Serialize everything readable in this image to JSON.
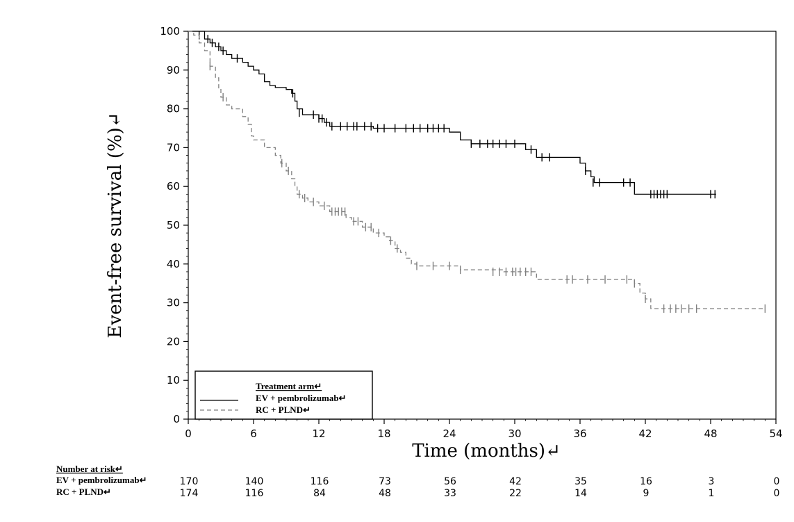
{
  "chart_data": {
    "type": "line",
    "subtype": "kaplan-meier",
    "xlabel": "Time (months)↵",
    "ylabel": "Event-free survival (%)↵",
    "xlim": [
      0,
      54
    ],
    "ylim": [
      0,
      100
    ],
    "xticks": [
      0,
      6,
      12,
      18,
      24,
      30,
      36,
      42,
      48,
      54
    ],
    "yticks": [
      0,
      10,
      20,
      30,
      40,
      50,
      60,
      70,
      80,
      90,
      100
    ],
    "grid": false,
    "legend": {
      "title": "Treatment arm↵",
      "placement": "bottom-left",
      "entries": [
        "EV + pembrolizumab↵",
        "RC + PLND↵"
      ]
    },
    "series": [
      {
        "name": "EV + pembrolizumab↵",
        "color": "#000000",
        "dash": "solid",
        "steps": [
          [
            0,
            100
          ],
          [
            1.5,
            98
          ],
          [
            2,
            97
          ],
          [
            2.5,
            96
          ],
          [
            3,
            95
          ],
          [
            3.5,
            94
          ],
          [
            4,
            93
          ],
          [
            5,
            92
          ],
          [
            5.5,
            91
          ],
          [
            6,
            90
          ],
          [
            6.5,
            89
          ],
          [
            7,
            87
          ],
          [
            7.5,
            86
          ],
          [
            8,
            85.5
          ],
          [
            9,
            85
          ],
          [
            9.5,
            84
          ],
          [
            9.8,
            82
          ],
          [
            10,
            80
          ],
          [
            10.5,
            78.5
          ],
          [
            12,
            77.5
          ],
          [
            12.5,
            76.5
          ],
          [
            13,
            75.5
          ],
          [
            17,
            75
          ],
          [
            24,
            74
          ],
          [
            25,
            72
          ],
          [
            26,
            71
          ],
          [
            31,
            69.5
          ],
          [
            32,
            67.5
          ],
          [
            36,
            66
          ],
          [
            36.5,
            64
          ],
          [
            37,
            62.5
          ],
          [
            37.3,
            61
          ],
          [
            41,
            58
          ],
          [
            48.5,
            58
          ]
        ],
        "censors": [
          [
            1,
            99
          ],
          [
            1.8,
            98
          ],
          [
            2.2,
            97
          ],
          [
            2.8,
            96
          ],
          [
            3.2,
            95
          ],
          [
            4.5,
            93
          ],
          [
            9.6,
            84
          ],
          [
            10.2,
            79
          ],
          [
            11.5,
            78.5
          ],
          [
            12,
            77.5
          ],
          [
            12.3,
            77.5
          ],
          [
            12.7,
            76.5
          ],
          [
            13.2,
            75.5
          ],
          [
            14,
            75.5
          ],
          [
            14.6,
            75.5
          ],
          [
            15.2,
            75.5
          ],
          [
            15.5,
            75.5
          ],
          [
            16.2,
            75.5
          ],
          [
            16.8,
            75.5
          ],
          [
            17.4,
            75
          ],
          [
            18,
            75
          ],
          [
            19,
            75
          ],
          [
            20,
            75
          ],
          [
            20.7,
            75
          ],
          [
            21.3,
            75
          ],
          [
            22,
            75
          ],
          [
            22.5,
            75
          ],
          [
            23,
            75
          ],
          [
            23.5,
            75
          ],
          [
            26,
            71
          ],
          [
            26.8,
            71
          ],
          [
            27.5,
            71
          ],
          [
            28,
            71
          ],
          [
            28.6,
            71
          ],
          [
            29.2,
            71
          ],
          [
            30,
            71
          ],
          [
            31.5,
            69.5
          ],
          [
            32.5,
            67.5
          ],
          [
            33.2,
            67.5
          ],
          [
            36.5,
            64
          ],
          [
            37.2,
            61
          ],
          [
            37.8,
            61
          ],
          [
            40,
            61
          ],
          [
            40.6,
            61
          ],
          [
            42.5,
            58
          ],
          [
            42.8,
            58
          ],
          [
            43.1,
            58
          ],
          [
            43.4,
            58
          ],
          [
            43.7,
            58
          ],
          [
            44,
            58
          ],
          [
            48,
            58
          ],
          [
            48.4,
            58
          ]
        ]
      },
      {
        "name": "RC + PLND↵",
        "color": "#808080",
        "dash": "dashed",
        "steps": [
          [
            0,
            100
          ],
          [
            0.5,
            99
          ],
          [
            1,
            97
          ],
          [
            1.5,
            95
          ],
          [
            2,
            91
          ],
          [
            2.5,
            88
          ],
          [
            2.8,
            85
          ],
          [
            3,
            83
          ],
          [
            3.5,
            81
          ],
          [
            4,
            80
          ],
          [
            5,
            78
          ],
          [
            5.5,
            76
          ],
          [
            5.8,
            73
          ],
          [
            6,
            72
          ],
          [
            7,
            70
          ],
          [
            8,
            68
          ],
          [
            8.5,
            66
          ],
          [
            9,
            64
          ],
          [
            9.5,
            62
          ],
          [
            9.8,
            60
          ],
          [
            10,
            58
          ],
          [
            10.5,
            57
          ],
          [
            11,
            56
          ],
          [
            12,
            55
          ],
          [
            13,
            53.5
          ],
          [
            14.5,
            52
          ],
          [
            15,
            51
          ],
          [
            16,
            49.5
          ],
          [
            17,
            48
          ],
          [
            18,
            47
          ],
          [
            18.5,
            46
          ],
          [
            19,
            44
          ],
          [
            19.5,
            43
          ],
          [
            20,
            41.5
          ],
          [
            20.5,
            40
          ],
          [
            21,
            39.5
          ],
          [
            25,
            38.5
          ],
          [
            29,
            38
          ],
          [
            32,
            36
          ],
          [
            41,
            35
          ],
          [
            41.5,
            32.5
          ],
          [
            42,
            31
          ],
          [
            42.5,
            28.5
          ],
          [
            53,
            28.5
          ]
        ],
        "censors": [
          [
            2,
            91
          ],
          [
            3.2,
            83
          ],
          [
            8.6,
            66
          ],
          [
            9.2,
            64
          ],
          [
            10.2,
            58
          ],
          [
            10.7,
            57
          ],
          [
            11.5,
            56
          ],
          [
            12.5,
            55
          ],
          [
            13.2,
            53.5
          ],
          [
            13.5,
            53.5
          ],
          [
            13.8,
            53.5
          ],
          [
            14.1,
            53.5
          ],
          [
            14.4,
            53.5
          ],
          [
            15.2,
            51
          ],
          [
            15.6,
            51
          ],
          [
            16.3,
            49.5
          ],
          [
            16.8,
            49.5
          ],
          [
            17.5,
            48
          ],
          [
            18.6,
            46
          ],
          [
            19.2,
            44
          ],
          [
            21,
            39.5
          ],
          [
            22.5,
            39.5
          ],
          [
            24,
            39.5
          ],
          [
            25,
            38.5
          ],
          [
            28,
            38
          ],
          [
            28.6,
            38
          ],
          [
            29.2,
            38
          ],
          [
            29.8,
            38
          ],
          [
            30.1,
            38
          ],
          [
            30.5,
            38
          ],
          [
            31,
            38
          ],
          [
            31.5,
            38
          ],
          [
            34.8,
            36
          ],
          [
            35.3,
            36
          ],
          [
            36.7,
            36
          ],
          [
            38.3,
            36
          ],
          [
            40.3,
            36
          ],
          [
            41,
            35
          ],
          [
            42,
            31
          ],
          [
            43.7,
            28.5
          ],
          [
            44.3,
            28.5
          ],
          [
            44.8,
            28.5
          ],
          [
            45.3,
            28.5
          ],
          [
            46,
            28.5
          ],
          [
            46.7,
            28.5
          ],
          [
            53,
            28.5
          ]
        ]
      }
    ],
    "risk_table": {
      "title": "Number at risk↵",
      "times": [
        0,
        6,
        12,
        18,
        24,
        30,
        36,
        42,
        48,
        54
      ],
      "rows": [
        {
          "label": "EV + pembrolizumab↵",
          "counts": [
            170,
            140,
            116,
            73,
            56,
            42,
            35,
            16,
            3,
            0
          ]
        },
        {
          "label": "RC + PLND↵",
          "counts": [
            174,
            116,
            84,
            48,
            33,
            22,
            14,
            9,
            1,
            0
          ]
        }
      ]
    }
  }
}
